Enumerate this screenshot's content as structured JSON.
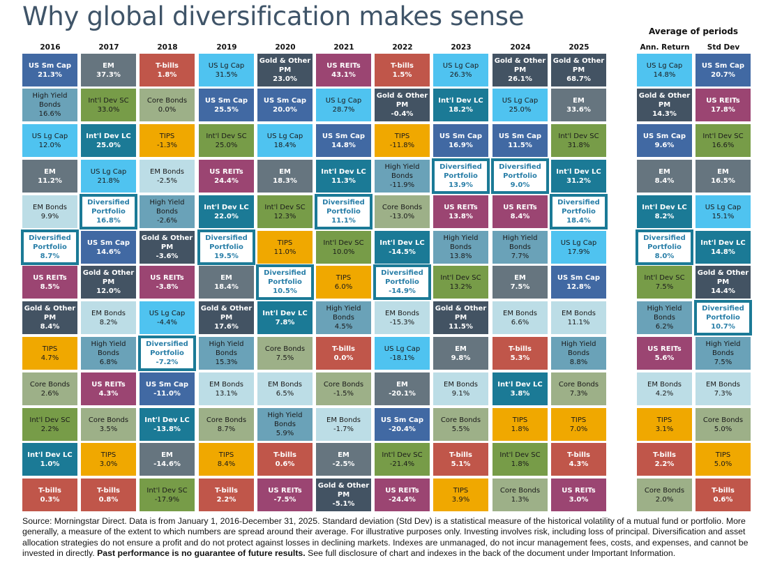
{
  "title": "Why global diversification makes sense",
  "avg_title": "Average of periods",
  "asset_styles": {
    "US Sm Cap": {
      "bg": "#4169a3",
      "fg": "#ffffff",
      "bold": true
    },
    "US Lg Cap": {
      "bg": "#4fc3f0",
      "fg": "#1a1a1a",
      "bold": false
    },
    "EM": {
      "bg": "#66757f",
      "fg": "#ffffff",
      "bold": true
    },
    "Int'l Dev SC": {
      "bg": "#779c48",
      "fg": "#1a1a1a",
      "bold": false
    },
    "Int'l Dev LC": {
      "bg": "#1b7a96",
      "fg": "#ffffff",
      "bold": true
    },
    "High Yield Bonds": {
      "bg": "#6aa2b8",
      "fg": "#1a1a1a",
      "bold": false
    },
    "EM Bonds": {
      "bg": "#bcdde6",
      "fg": "#1a1a1a",
      "bold": false
    },
    "Core Bonds": {
      "bg": "#9db088",
      "fg": "#1a1a1a",
      "bold": false
    },
    "TIPS": {
      "bg": "#f0a800",
      "fg": "#1a1a1a",
      "bold": false
    },
    "T-bills": {
      "bg": "#c0564a",
      "fg": "#ffffff",
      "bold": true
    },
    "US REITs": {
      "bg": "#9b4572",
      "fg": "#ffffff",
      "bold": true
    },
    "Gold & Other PM": {
      "bg": "#435363",
      "fg": "#ffffff",
      "bold": true
    },
    "Diversified Portfolio": {
      "bg": "#ffffff",
      "fg": "#2a7fa8",
      "bold": true,
      "outline": "#1b7a96"
    }
  },
  "chart_data": {
    "type": "table",
    "title": "Why global diversification makes sense",
    "description": "Annual returns by asset class ranked highest to lowest, 2016-2025, plus average annualized return and standard deviation",
    "years": [
      "2016",
      "2017",
      "2018",
      "2019",
      "2020",
      "2021",
      "2022",
      "2023",
      "2024",
      "2025"
    ],
    "columns": [
      {
        "header": "2016",
        "cells": [
          {
            "asset": "US Sm Cap",
            "value": "21.3%"
          },
          {
            "asset": "High Yield Bonds",
            "value": "16.6%"
          },
          {
            "asset": "US Lg Cap",
            "value": "12.0%"
          },
          {
            "asset": "EM",
            "value": "11.2%"
          },
          {
            "asset": "EM Bonds",
            "value": "9.9%"
          },
          {
            "asset": "Diversified Portfolio",
            "value": "8.7%"
          },
          {
            "asset": "US REITs",
            "value": "8.5%"
          },
          {
            "asset": "Gold & Other PM",
            "value": "8.4%"
          },
          {
            "asset": "TIPS",
            "value": "4.7%"
          },
          {
            "asset": "Core Bonds",
            "value": "2.6%"
          },
          {
            "asset": "Int'l Dev SC",
            "value": "2.2%"
          },
          {
            "asset": "Int'l Dev LC",
            "value": "1.0%"
          },
          {
            "asset": "T-bills",
            "value": "0.3%"
          }
        ]
      },
      {
        "header": "2017",
        "cells": [
          {
            "asset": "EM",
            "value": "37.3%"
          },
          {
            "asset": "Int'l Dev SC",
            "value": "33.0%"
          },
          {
            "asset": "Int'l Dev LC",
            "value": "25.0%"
          },
          {
            "asset": "US Lg Cap",
            "value": "21.8%"
          },
          {
            "asset": "Diversified Portfolio",
            "value": "16.8%"
          },
          {
            "asset": "US Sm Cap",
            "value": "14.6%"
          },
          {
            "asset": "Gold & Other PM",
            "value": "12.0%"
          },
          {
            "asset": "EM Bonds",
            "value": "8.2%"
          },
          {
            "asset": "High Yield Bonds",
            "value": "6.8%"
          },
          {
            "asset": "US REITs",
            "value": "4.3%"
          },
          {
            "asset": "Core Bonds",
            "value": "3.5%"
          },
          {
            "asset": "TIPS",
            "value": "3.0%"
          },
          {
            "asset": "T-bills",
            "value": "0.8%"
          }
        ]
      },
      {
        "header": "2018",
        "cells": [
          {
            "asset": "T-bills",
            "value": "1.8%"
          },
          {
            "asset": "Core Bonds",
            "value": "0.0%"
          },
          {
            "asset": "TIPS",
            "value": "-1.3%"
          },
          {
            "asset": "EM Bonds",
            "value": "-2.5%"
          },
          {
            "asset": "High Yield Bonds",
            "value": "-2.6%"
          },
          {
            "asset": "Gold & Other PM",
            "value": "-3.6%"
          },
          {
            "asset": "US REITs",
            "value": "-3.8%"
          },
          {
            "asset": "US Lg Cap",
            "value": "-4.4%"
          },
          {
            "asset": "Diversified Portfolio",
            "value": "-7.2%"
          },
          {
            "asset": "US Sm Cap",
            "value": "-11.0%"
          },
          {
            "asset": "Int'l Dev LC",
            "value": "-13.8%"
          },
          {
            "asset": "EM",
            "value": "-14.6%"
          },
          {
            "asset": "Int'l Dev SC",
            "value": "-17.9%"
          }
        ]
      },
      {
        "header": "2019",
        "cells": [
          {
            "asset": "US Lg Cap",
            "value": "31.5%"
          },
          {
            "asset": "US Sm Cap",
            "value": "25.5%"
          },
          {
            "asset": "Int'l Dev SC",
            "value": "25.0%"
          },
          {
            "asset": "US REITs",
            "value": "24.4%"
          },
          {
            "asset": "Int'l Dev LC",
            "value": "22.0%"
          },
          {
            "asset": "Diversified Portfolio",
            "value": "19.5%"
          },
          {
            "asset": "EM",
            "value": "18.4%"
          },
          {
            "asset": "Gold & Other PM",
            "value": "17.6%"
          },
          {
            "asset": "High Yield Bonds",
            "value": "15.3%"
          },
          {
            "asset": "EM Bonds",
            "value": "13.1%"
          },
          {
            "asset": "Core Bonds",
            "value": "8.7%"
          },
          {
            "asset": "TIPS",
            "value": "8.4%"
          },
          {
            "asset": "T-bills",
            "value": "2.2%"
          }
        ]
      },
      {
        "header": "2020",
        "cells": [
          {
            "asset": "Gold & Other PM",
            "value": "23.0%"
          },
          {
            "asset": "US Sm Cap",
            "value": "20.0%"
          },
          {
            "asset": "US Lg Cap",
            "value": "18.4%"
          },
          {
            "asset": "EM",
            "value": "18.3%"
          },
          {
            "asset": "Int'l Dev SC",
            "value": "12.3%"
          },
          {
            "asset": "TIPS",
            "value": "11.0%"
          },
          {
            "asset": "Diversified Portfolio",
            "value": "10.5%"
          },
          {
            "asset": "Int'l Dev LC",
            "value": "7.8%"
          },
          {
            "asset": "Core Bonds",
            "value": "7.5%"
          },
          {
            "asset": "EM Bonds",
            "value": "6.5%"
          },
          {
            "asset": "High Yield Bonds",
            "value": "5.9%"
          },
          {
            "asset": "T-bills",
            "value": "0.6%"
          },
          {
            "asset": "US REITs",
            "value": "-7.5%"
          }
        ]
      },
      {
        "header": "2021",
        "cells": [
          {
            "asset": "US REITs",
            "value": "43.1%"
          },
          {
            "asset": "US Lg Cap",
            "value": "28.7%"
          },
          {
            "asset": "US Sm Cap",
            "value": "14.8%"
          },
          {
            "asset": "Int'l Dev LC",
            "value": "11.3%"
          },
          {
            "asset": "Diversified Portfolio",
            "value": "11.1%"
          },
          {
            "asset": "Int'l Dev SC",
            "value": "10.0%"
          },
          {
            "asset": "TIPS",
            "value": "6.0%"
          },
          {
            "asset": "High Yield Bonds",
            "value": "4.5%"
          },
          {
            "asset": "T-bills",
            "value": "0.0%"
          },
          {
            "asset": "Core Bonds",
            "value": "-1.5%"
          },
          {
            "asset": "EM Bonds",
            "value": "-1.7%"
          },
          {
            "asset": "EM",
            "value": "-2.5%"
          },
          {
            "asset": "Gold & Other PM",
            "value": "-5.1%"
          }
        ]
      },
      {
        "header": "2022",
        "cells": [
          {
            "asset": "T-bills",
            "value": "1.5%"
          },
          {
            "asset": "Gold & Other PM",
            "value": "-0.4%"
          },
          {
            "asset": "TIPS",
            "value": "-11.8%"
          },
          {
            "asset": "High Yield Bonds",
            "value": "-11.9%"
          },
          {
            "asset": "Core Bonds",
            "value": "-13.0%"
          },
          {
            "asset": "Int'l Dev LC",
            "value": "-14.5%"
          },
          {
            "asset": "Diversified Portfolio",
            "value": "-14.9%"
          },
          {
            "asset": "EM Bonds",
            "value": "-15.3%"
          },
          {
            "asset": "US Lg Cap",
            "value": "-18.1%"
          },
          {
            "asset": "EM",
            "value": "-20.1%"
          },
          {
            "asset": "US Sm Cap",
            "value": "-20.4%"
          },
          {
            "asset": "Int'l Dev SC",
            "value": "-21.4%"
          },
          {
            "asset": "US REITs",
            "value": "-24.4%"
          }
        ]
      },
      {
        "header": "2023",
        "cells": [
          {
            "asset": "US Lg Cap",
            "value": "26.3%"
          },
          {
            "asset": "Int'l Dev LC",
            "value": "18.2%"
          },
          {
            "asset": "US Sm Cap",
            "value": "16.9%"
          },
          {
            "asset": "Diversified Portfolio",
            "value": "13.9%"
          },
          {
            "asset": "US REITs",
            "value": "13.8%"
          },
          {
            "asset": "High Yield Bonds",
            "value": "13.8%"
          },
          {
            "asset": "Int'l Dev SC",
            "value": "13.2%"
          },
          {
            "asset": "Gold & Other PM",
            "value": "11.5%"
          },
          {
            "asset": "EM",
            "value": "9.8%"
          },
          {
            "asset": "EM Bonds",
            "value": "9.1%"
          },
          {
            "asset": "Core Bonds",
            "value": "5.5%"
          },
          {
            "asset": "T-bills",
            "value": "5.1%"
          },
          {
            "asset": "TIPS",
            "value": "3.9%"
          }
        ]
      },
      {
        "header": "2024",
        "cells": [
          {
            "asset": "Gold & Other PM",
            "value": "26.1%"
          },
          {
            "asset": "US Lg Cap",
            "value": "25.0%"
          },
          {
            "asset": "US Sm Cap",
            "value": "11.5%"
          },
          {
            "asset": "Diversified Portfolio",
            "value": "9.0%"
          },
          {
            "asset": "US REITs",
            "value": "8.4%"
          },
          {
            "asset": "High Yield Bonds",
            "value": "7.7%"
          },
          {
            "asset": "EM",
            "value": "7.5%"
          },
          {
            "asset": "EM Bonds",
            "value": "6.6%"
          },
          {
            "asset": "T-bills",
            "value": "5.3%"
          },
          {
            "asset": "Int'l Dev LC",
            "value": "3.8%"
          },
          {
            "asset": "TIPS",
            "value": "1.8%"
          },
          {
            "asset": "Int'l Dev SC",
            "value": "1.8%"
          },
          {
            "asset": "Core Bonds",
            "value": "1.3%"
          }
        ]
      },
      {
        "header": "2025",
        "cells": [
          {
            "asset": "Gold & Other PM",
            "value": "68.7%"
          },
          {
            "asset": "EM",
            "value": "33.6%"
          },
          {
            "asset": "Int'l Dev SC",
            "value": "31.8%"
          },
          {
            "asset": "Int'l Dev LC",
            "value": "31.2%"
          },
          {
            "asset": "Diversified Portfolio",
            "value": "18.4%"
          },
          {
            "asset": "US Lg Cap",
            "value": "17.9%"
          },
          {
            "asset": "US Sm Cap",
            "value": "12.8%"
          },
          {
            "asset": "EM Bonds",
            "value": "11.1%"
          },
          {
            "asset": "High Yield Bonds",
            "value": "8.8%"
          },
          {
            "asset": "Core Bonds",
            "value": "7.3%"
          },
          {
            "asset": "TIPS",
            "value": "7.0%"
          },
          {
            "asset": "T-bills",
            "value": "4.3%"
          },
          {
            "asset": "US REITs",
            "value": "3.0%"
          }
        ]
      }
    ],
    "averages": [
      {
        "header": "Ann. Return",
        "cells": [
          {
            "asset": "US Lg Cap",
            "value": "14.8%"
          },
          {
            "asset": "Gold & Other PM",
            "value": "14.3%"
          },
          {
            "asset": "US Sm Cap",
            "value": "9.6%"
          },
          {
            "asset": "EM",
            "value": "8.4%"
          },
          {
            "asset": "Int'l Dev LC",
            "value": "8.2%"
          },
          {
            "asset": "Diversified Portfolio",
            "value": "8.0%"
          },
          {
            "asset": "Int'l Dev SC",
            "value": "7.5%"
          },
          {
            "asset": "High Yield Bonds",
            "value": "6.2%"
          },
          {
            "asset": "US REITs",
            "value": "5.6%"
          },
          {
            "asset": "EM Bonds",
            "value": "4.2%"
          },
          {
            "asset": "TIPS",
            "value": "3.1%"
          },
          {
            "asset": "T-bills",
            "value": "2.2%"
          },
          {
            "asset": "Core Bonds",
            "value": "2.0%"
          }
        ]
      },
      {
        "header": "Std Dev",
        "cells": [
          {
            "asset": "US Sm Cap",
            "value": "20.7%"
          },
          {
            "asset": "US REITs",
            "value": "17.8%"
          },
          {
            "asset": "Int'l Dev SC",
            "value": "16.6%"
          },
          {
            "asset": "EM",
            "value": "16.5%"
          },
          {
            "asset": "US Lg Cap",
            "value": "15.1%"
          },
          {
            "asset": "Int'l Dev LC",
            "value": "14.8%"
          },
          {
            "asset": "Gold & Other PM",
            "value": "14.4%"
          },
          {
            "asset": "Diversified Portfolio",
            "value": "10.7%"
          },
          {
            "asset": "High Yield Bonds",
            "value": "7.5%"
          },
          {
            "asset": "EM Bonds",
            "value": "7.3%"
          },
          {
            "asset": "Core Bonds",
            "value": "5.0%"
          },
          {
            "asset": "TIPS",
            "value": "5.0%"
          },
          {
            "asset": "T-bills",
            "value": "0.6%"
          }
        ]
      }
    ]
  },
  "footer": {
    "text_before_bold": "Source: Morningstar Direct. Data is from January 1, 2016-December 31, 2025. Standard deviation (Std Dev) is a statistical measure of the historical volatility of a mutual fund or portfolio. More generally, a measure of the extent to which numbers are spread around their average. For illustrative purposes only. Investing involves risk, including loss of principal. Diversification and asset allocation strategies do not ensure a profit and do not protect against losses in declining markets. Indexes are unmanaged, do not incur management fees, costs, and expenses, and cannot be invested in directly. ",
    "bold_text": "Past performance is no guarantee of future results.",
    "text_after_bold": " See full disclosure of chart and indexes in the back of the document under Important Information."
  }
}
